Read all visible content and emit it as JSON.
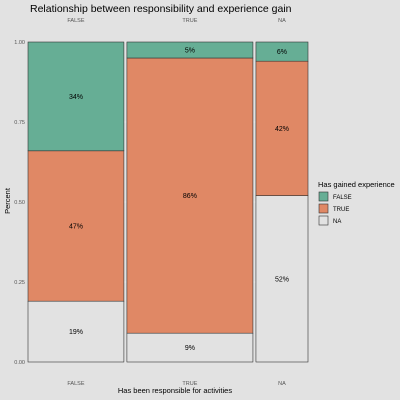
{
  "chart_data": {
    "type": "bar",
    "title": "Relationship between responsibility and experience gain",
    "xlabel": "Has been responsible for activities",
    "ylabel": "Percent",
    "ylim": [
      0,
      1
    ],
    "yticks": [
      "0.00",
      "0.25",
      "0.50",
      "0.75",
      "1.00"
    ],
    "ytick_values": [
      0,
      0.25,
      0.5,
      0.75,
      1.0
    ],
    "categories": [
      "FALSE",
      "TRUE",
      "NA"
    ],
    "column_width_proportions": [
      0.35,
      0.46,
      0.19
    ],
    "series": [
      {
        "name": "NA",
        "color": "#e2e2e2",
        "values": [
          0.19,
          0.09,
          0.52
        ],
        "labels": [
          "19%",
          "9%",
          "52%"
        ]
      },
      {
        "name": "TRUE",
        "color": "#e08865",
        "values": [
          0.47,
          0.86,
          0.42
        ],
        "labels": [
          "47%",
          "86%",
          "42%"
        ]
      },
      {
        "name": "FALSE",
        "color": "#66ae95",
        "values": [
          0.34,
          0.05,
          0.06
        ],
        "labels": [
          "34%",
          "5%",
          "6%"
        ]
      }
    ],
    "legend": {
      "title": "Has gained experience",
      "placement": "right",
      "items": [
        {
          "label": "FALSE",
          "color": "#66ae95"
        },
        {
          "label": "TRUE",
          "color": "#e08865"
        },
        {
          "label": "NA",
          "color": "#e2e2e2"
        }
      ]
    },
    "grid": true
  }
}
